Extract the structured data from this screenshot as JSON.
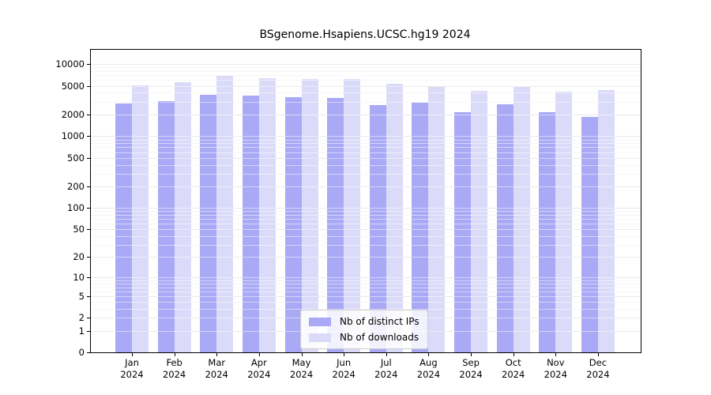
{
  "title": "BSgenome.Hsapiens.UCSC.hg19 2024",
  "chart_data": {
    "type": "bar",
    "scale": "log10(1+x)",
    "grid": true,
    "legend_position": "bottom-center-inside",
    "categories": [
      "Jan",
      "Feb",
      "Mar",
      "Apr",
      "May",
      "Jun",
      "Jul",
      "Aug",
      "Sep",
      "Oct",
      "Nov",
      "Dec"
    ],
    "year": "2024",
    "series": [
      {
        "name": "Nb of distinct IPs",
        "color": "#a9a9f6",
        "values": [
          2850,
          3050,
          3800,
          3650,
          3450,
          3420,
          2730,
          2940,
          2170,
          2790,
          2170,
          1870
        ]
      },
      {
        "name": "Nb of downloads",
        "color": "#dbdbf9",
        "values": [
          5050,
          5650,
          6800,
          6380,
          6240,
          6200,
          5390,
          4800,
          4230,
          4950,
          4190,
          4370
        ]
      }
    ],
    "yticks": [
      10000,
      5000,
      2000,
      1000,
      500,
      200,
      100,
      50,
      20,
      10,
      5,
      2,
      1,
      0
    ],
    "ylim": [
      0,
      13000
    ]
  },
  "colors": {
    "major_grid": "#d4d4d4",
    "minor_grid": "#ececec",
    "axis": "#000000"
  }
}
